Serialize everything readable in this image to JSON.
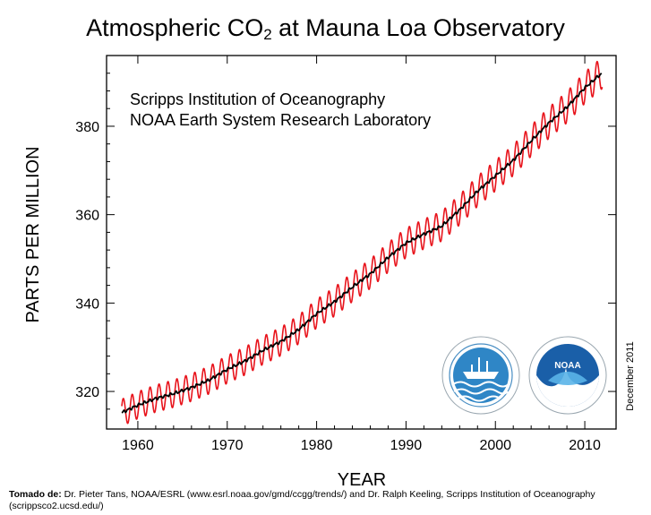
{
  "title": {
    "prefix": "Atmospheric CO",
    "subscript": "2",
    "suffix": " at Mauna Loa Observatory"
  },
  "annotation": {
    "line1": "Scripps Institution of Oceanography",
    "line2": "NOAA Earth System Research Laboratory"
  },
  "date_stamp": "December 2011",
  "credit": {
    "label": "Tomado de:",
    "text": " Dr. Pieter Tans, NOAA/ESRL (www.esrl.noaa.gov/gmd/ccgg/trends/) and Dr. Ralph Keeling, Scripps Institution of Oceanography (scrippsco2.ucsd.edu/)"
  },
  "logos": [
    "scripps-logo",
    "noaa-logo"
  ],
  "colors": {
    "monthly": "#e8141c",
    "trend": "#000000"
  },
  "chart_data": {
    "type": "line",
    "xlabel": "YEAR",
    "ylabel": "PARTS PER MILLION",
    "xlim": [
      1956.5,
      2013.5
    ],
    "ylim": [
      311.5,
      396
    ],
    "xticks": [
      1960,
      1970,
      1980,
      1990,
      2000,
      2010
    ],
    "yticks": [
      320,
      340,
      360,
      380
    ],
    "grid": false,
    "seasonal_amplitude_ppm": 3.3,
    "series": [
      {
        "name": "",
        "kind": "trend",
        "x": [
          1958.2,
          1960,
          1962,
          1964,
          1966,
          1968,
          1970,
          1972,
          1974,
          1976,
          1978,
          1980,
          1982,
          1984,
          1986,
          1988,
          1990,
          1992,
          1994,
          1996,
          1998,
          2000,
          2002,
          2004,
          2006,
          2008,
          2010,
          2011.9
        ],
        "y": [
          315.2,
          316.9,
          318.4,
          319.5,
          320.9,
          322.6,
          325.0,
          326.9,
          329.3,
          331.3,
          334.0,
          337.6,
          340.3,
          343.6,
          346.6,
          350.3,
          353.6,
          355.6,
          357.4,
          361.1,
          365.3,
          368.8,
          372.3,
          376.7,
          380.8,
          384.3,
          388.7,
          392.0
        ]
      },
      {
        "name": "",
        "kind": "monthly",
        "derived_from": "trend plus annual seasonal cycle",
        "x_range": [
          1958.2,
          2011.95
        ]
      }
    ]
  }
}
